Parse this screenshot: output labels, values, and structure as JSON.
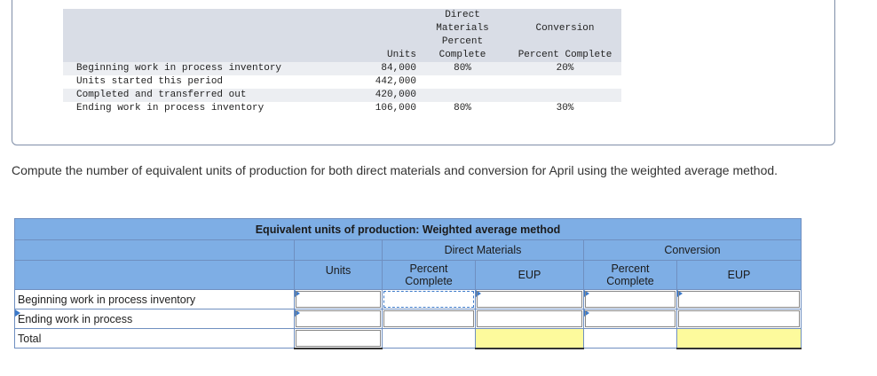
{
  "given_table": {
    "headers": {
      "dm_line1": "Direct",
      "dm_line2": "Materials",
      "conv": "Conversion",
      "dm_pct_line1": "Percent",
      "dm_pct_line2": "Complete",
      "units": "Units",
      "conv_pct": "Percent Complete"
    },
    "rows": [
      {
        "label": "Beginning work in process inventory",
        "units": "84,000",
        "dm": "80%",
        "conv": "20%"
      },
      {
        "label": "Units started this period",
        "units": "442,000",
        "dm": "",
        "conv": ""
      },
      {
        "label": "Completed and transferred out",
        "units": "420,000",
        "dm": "",
        "conv": ""
      },
      {
        "label": "Ending work in process inventory",
        "units": "106,000",
        "dm": "80%",
        "conv": "30%"
      }
    ]
  },
  "instruction": "Compute the number of equivalent units of production for both direct materials and conversion for April using the weighted average method.",
  "answer_grid": {
    "title": "Equivalent units of production: Weighted average method",
    "dm_header": "Direct Materials",
    "conv_header": "Conversion",
    "units_header": "Units",
    "pct_line1": "Percent",
    "pct_line2": "Complete",
    "eup_header": "EUP",
    "rows": [
      {
        "label": "Beginning work in process inventory"
      },
      {
        "label": "Ending work in process"
      },
      {
        "label": "Total"
      }
    ]
  },
  "colors": {
    "header_blue": "#7eaee5",
    "total_yellow": "#fdfa9c",
    "given_header_gray": "#d9dde6"
  }
}
